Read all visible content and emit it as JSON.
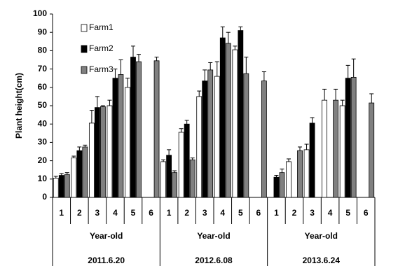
{
  "chart_data": {
    "type": "bar",
    "y_label": "Plant height(cm)",
    "categories": [
      "1",
      "2",
      "3",
      "4",
      "5",
      "6",
      "1",
      "2",
      "3",
      "4",
      "5",
      "6",
      "1",
      "2",
      "3",
      "4",
      "5",
      "6"
    ],
    "groups": [
      "2011.6.20",
      "2012.6.08",
      "2013.6.24"
    ],
    "group_label": "Year-old",
    "series": [
      {
        "name": "Farm1",
        "color": "#ffffff",
        "values": [
          10.5,
          21.5,
          40.5,
          50,
          60,
          null,
          19.5,
          35.5,
          55,
          66,
          80.5,
          null,
          null,
          19.5,
          26,
          53,
          50,
          null
        ],
        "errors": [
          1,
          1,
          7,
          3,
          5,
          null,
          1,
          2,
          3,
          8,
          2,
          null,
          null,
          1.5,
          3,
          6,
          3,
          null
        ]
      },
      {
        "name": "Farm2",
        "color": "#000000",
        "values": [
          12,
          25.5,
          49,
          65,
          76.5,
          null,
          23,
          40,
          63.5,
          87,
          91,
          null,
          11,
          null,
          40.5,
          null,
          65,
          null
        ],
        "errors": [
          1,
          2,
          6,
          5,
          6,
          null,
          3,
          2,
          6,
          6,
          2,
          null,
          1,
          null,
          3,
          null,
          7,
          null
        ]
      },
      {
        "name": "Farm3",
        "color": "#808080",
        "values": [
          12.5,
          27.5,
          49.5,
          67,
          74,
          74.5,
          13.5,
          20.5,
          69.5,
          84,
          67.5,
          63.5,
          13.5,
          25.5,
          null,
          53,
          65.5,
          51.5
        ],
        "errors": [
          1,
          1,
          0.5,
          8,
          4,
          2,
          1,
          1,
          4,
          6,
          9,
          5,
          2,
          2,
          null,
          6,
          10,
          5
        ]
      }
    ],
    "ylim": [
      0,
      100
    ],
    "yticks": [
      0,
      10,
      20,
      30,
      40,
      50,
      60,
      70,
      80,
      90,
      100
    ],
    "grid": false
  }
}
